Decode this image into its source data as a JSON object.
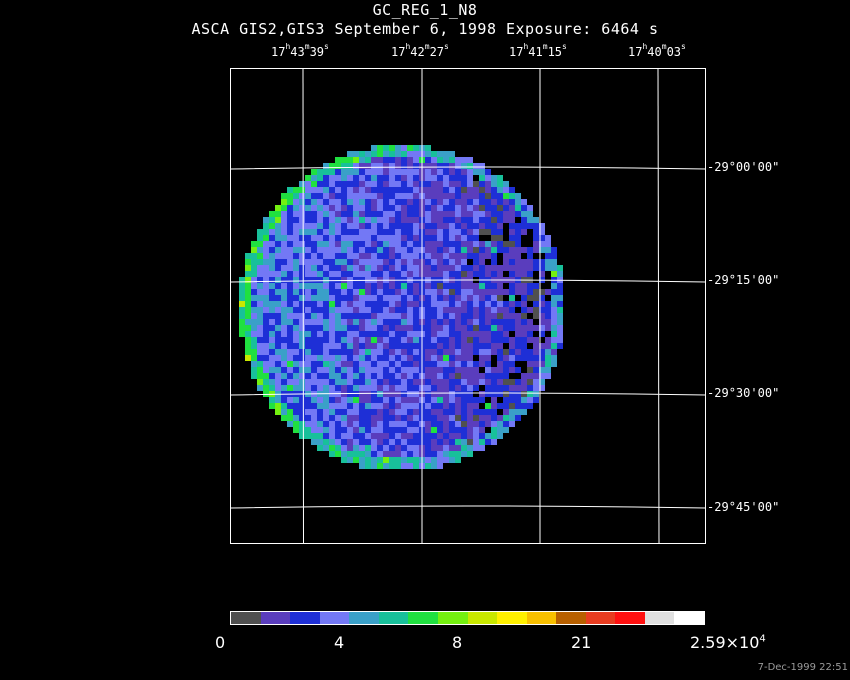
{
  "title": "GC_REG_1_N8",
  "subtitle": "ASCA GIS2,GIS3 September 6, 1998 Exposure: 6464 s",
  "ra_ticks": [
    {
      "h": "17",
      "m": "43",
      "s": "39"
    },
    {
      "h": "17",
      "m": "42",
      "s": "27"
    },
    {
      "h": "17",
      "m": "41",
      "s": "15"
    },
    {
      "h": "17",
      "m": "40",
      "s": "03"
    }
  ],
  "dec_ticks": [
    {
      "d": "-29",
      "m": "00",
      "s": "00"
    },
    {
      "d": "-29",
      "m": "15",
      "s": "00"
    },
    {
      "d": "-29",
      "m": "30",
      "s": "00"
    },
    {
      "d": "-29",
      "m": "45",
      "s": "00"
    }
  ],
  "colorbar": {
    "colors": [
      "#505050",
      "#5a3dbd",
      "#1e2fd6",
      "#7378f5",
      "#3aa0c8",
      "#18c09a",
      "#20e040",
      "#74f010",
      "#c8e800",
      "#fff000",
      "#f8c000",
      "#b86000",
      "#e83c20",
      "#ff1010",
      "#e0e0e0",
      "#ffffff"
    ],
    "labels": [
      "0",
      "4",
      "8",
      "21"
    ],
    "max_mantissa": "2.59×10",
    "max_exp": "4"
  },
  "timestamp": "7-Dec-1999 22:51"
}
